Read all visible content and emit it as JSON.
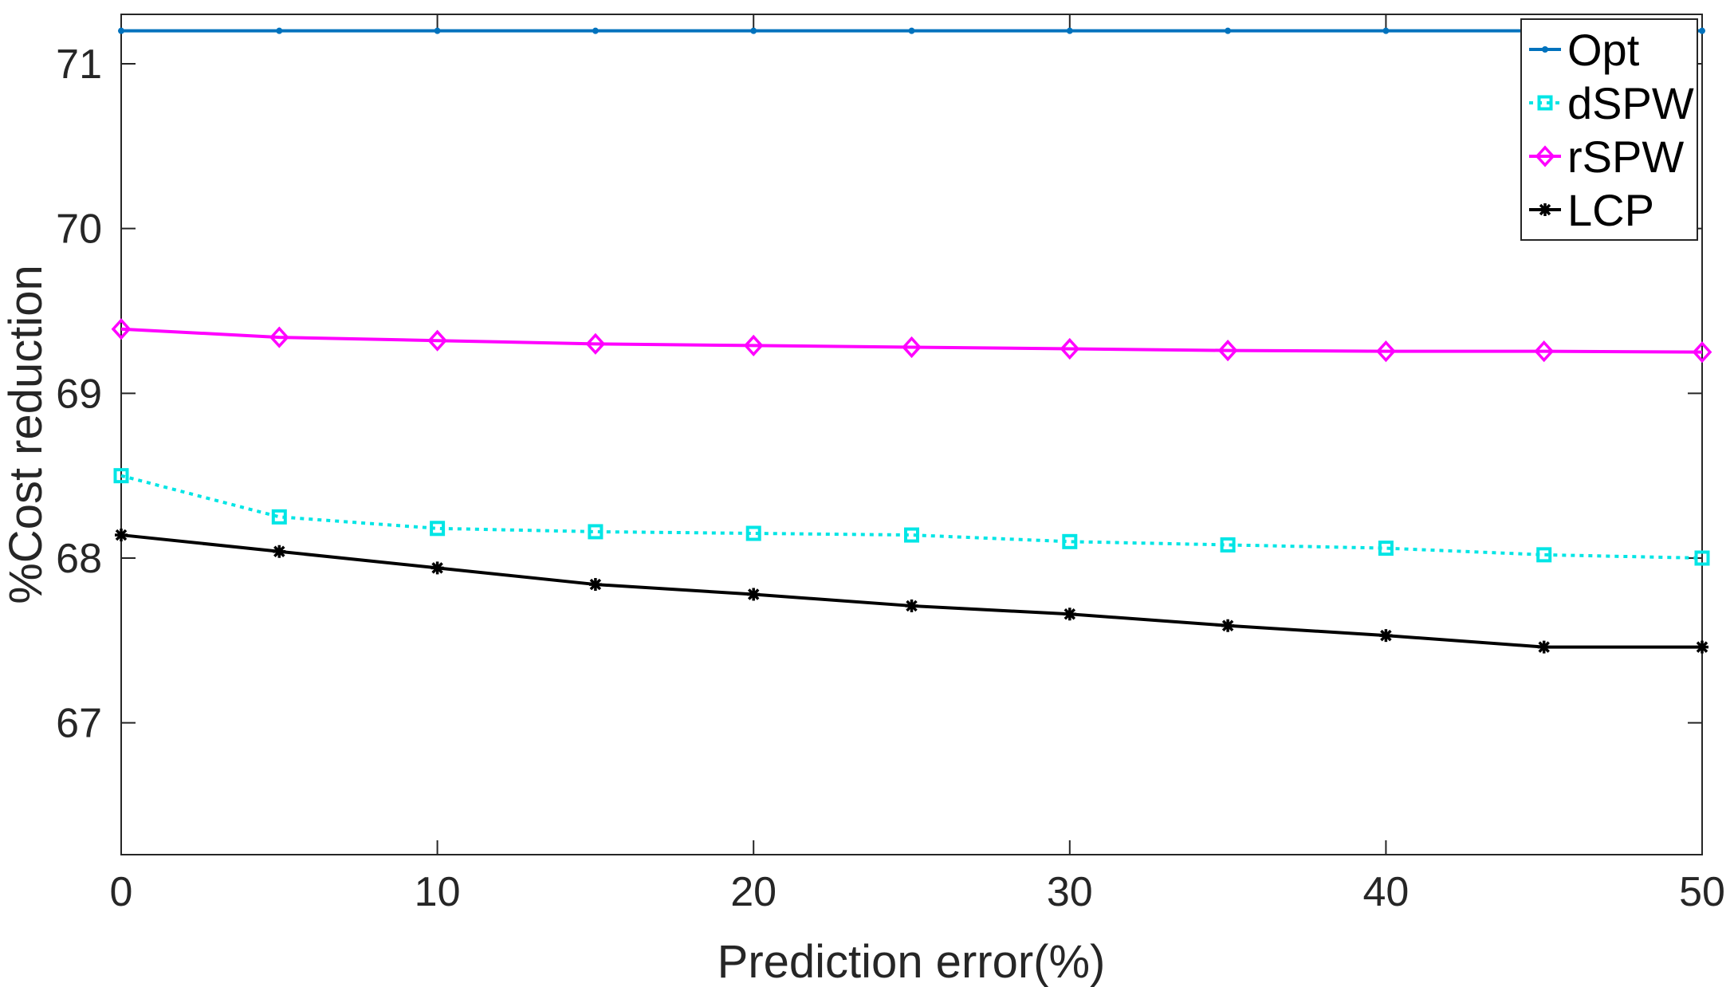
{
  "chart_data": {
    "type": "line",
    "xlabel": "Prediction error(%)",
    "ylabel": "%Cost reduction",
    "xlim": [
      0,
      50
    ],
    "ylim": [
      66.2,
      71.3
    ],
    "xticks": [
      "0",
      "10",
      "20",
      "30",
      "40",
      "50"
    ],
    "yticks": [
      "67",
      "68",
      "69",
      "70",
      "71"
    ],
    "x": [
      0,
      5,
      10,
      15,
      20,
      25,
      30,
      35,
      40,
      45,
      50
    ],
    "grid": false,
    "legend_position": "top-right",
    "series": [
      {
        "name": "Opt",
        "color": "#0072BD",
        "marker": "dot",
        "dash": "solid",
        "values": [
          71.2,
          71.2,
          71.2,
          71.2,
          71.2,
          71.2,
          71.2,
          71.2,
          71.2,
          71.2,
          71.2
        ]
      },
      {
        "name": "dSPW",
        "color": "#00E5E5",
        "marker": "square",
        "dash": "dotted",
        "values": [
          68.5,
          68.25,
          68.18,
          68.16,
          68.15,
          68.14,
          68.1,
          68.08,
          68.06,
          68.02,
          68.0
        ]
      },
      {
        "name": "rSPW",
        "color": "#FF00FF",
        "marker": "diamond",
        "dash": "solid",
        "values": [
          69.39,
          69.34,
          69.32,
          69.3,
          69.29,
          69.28,
          69.27,
          69.26,
          69.255,
          69.255,
          69.25
        ]
      },
      {
        "name": "LCP",
        "color": "#000000",
        "marker": "asterisk",
        "dash": "solid",
        "values": [
          68.14,
          68.04,
          67.94,
          67.84,
          67.78,
          67.71,
          67.66,
          67.59,
          67.53,
          67.46,
          67.46
        ]
      }
    ]
  }
}
